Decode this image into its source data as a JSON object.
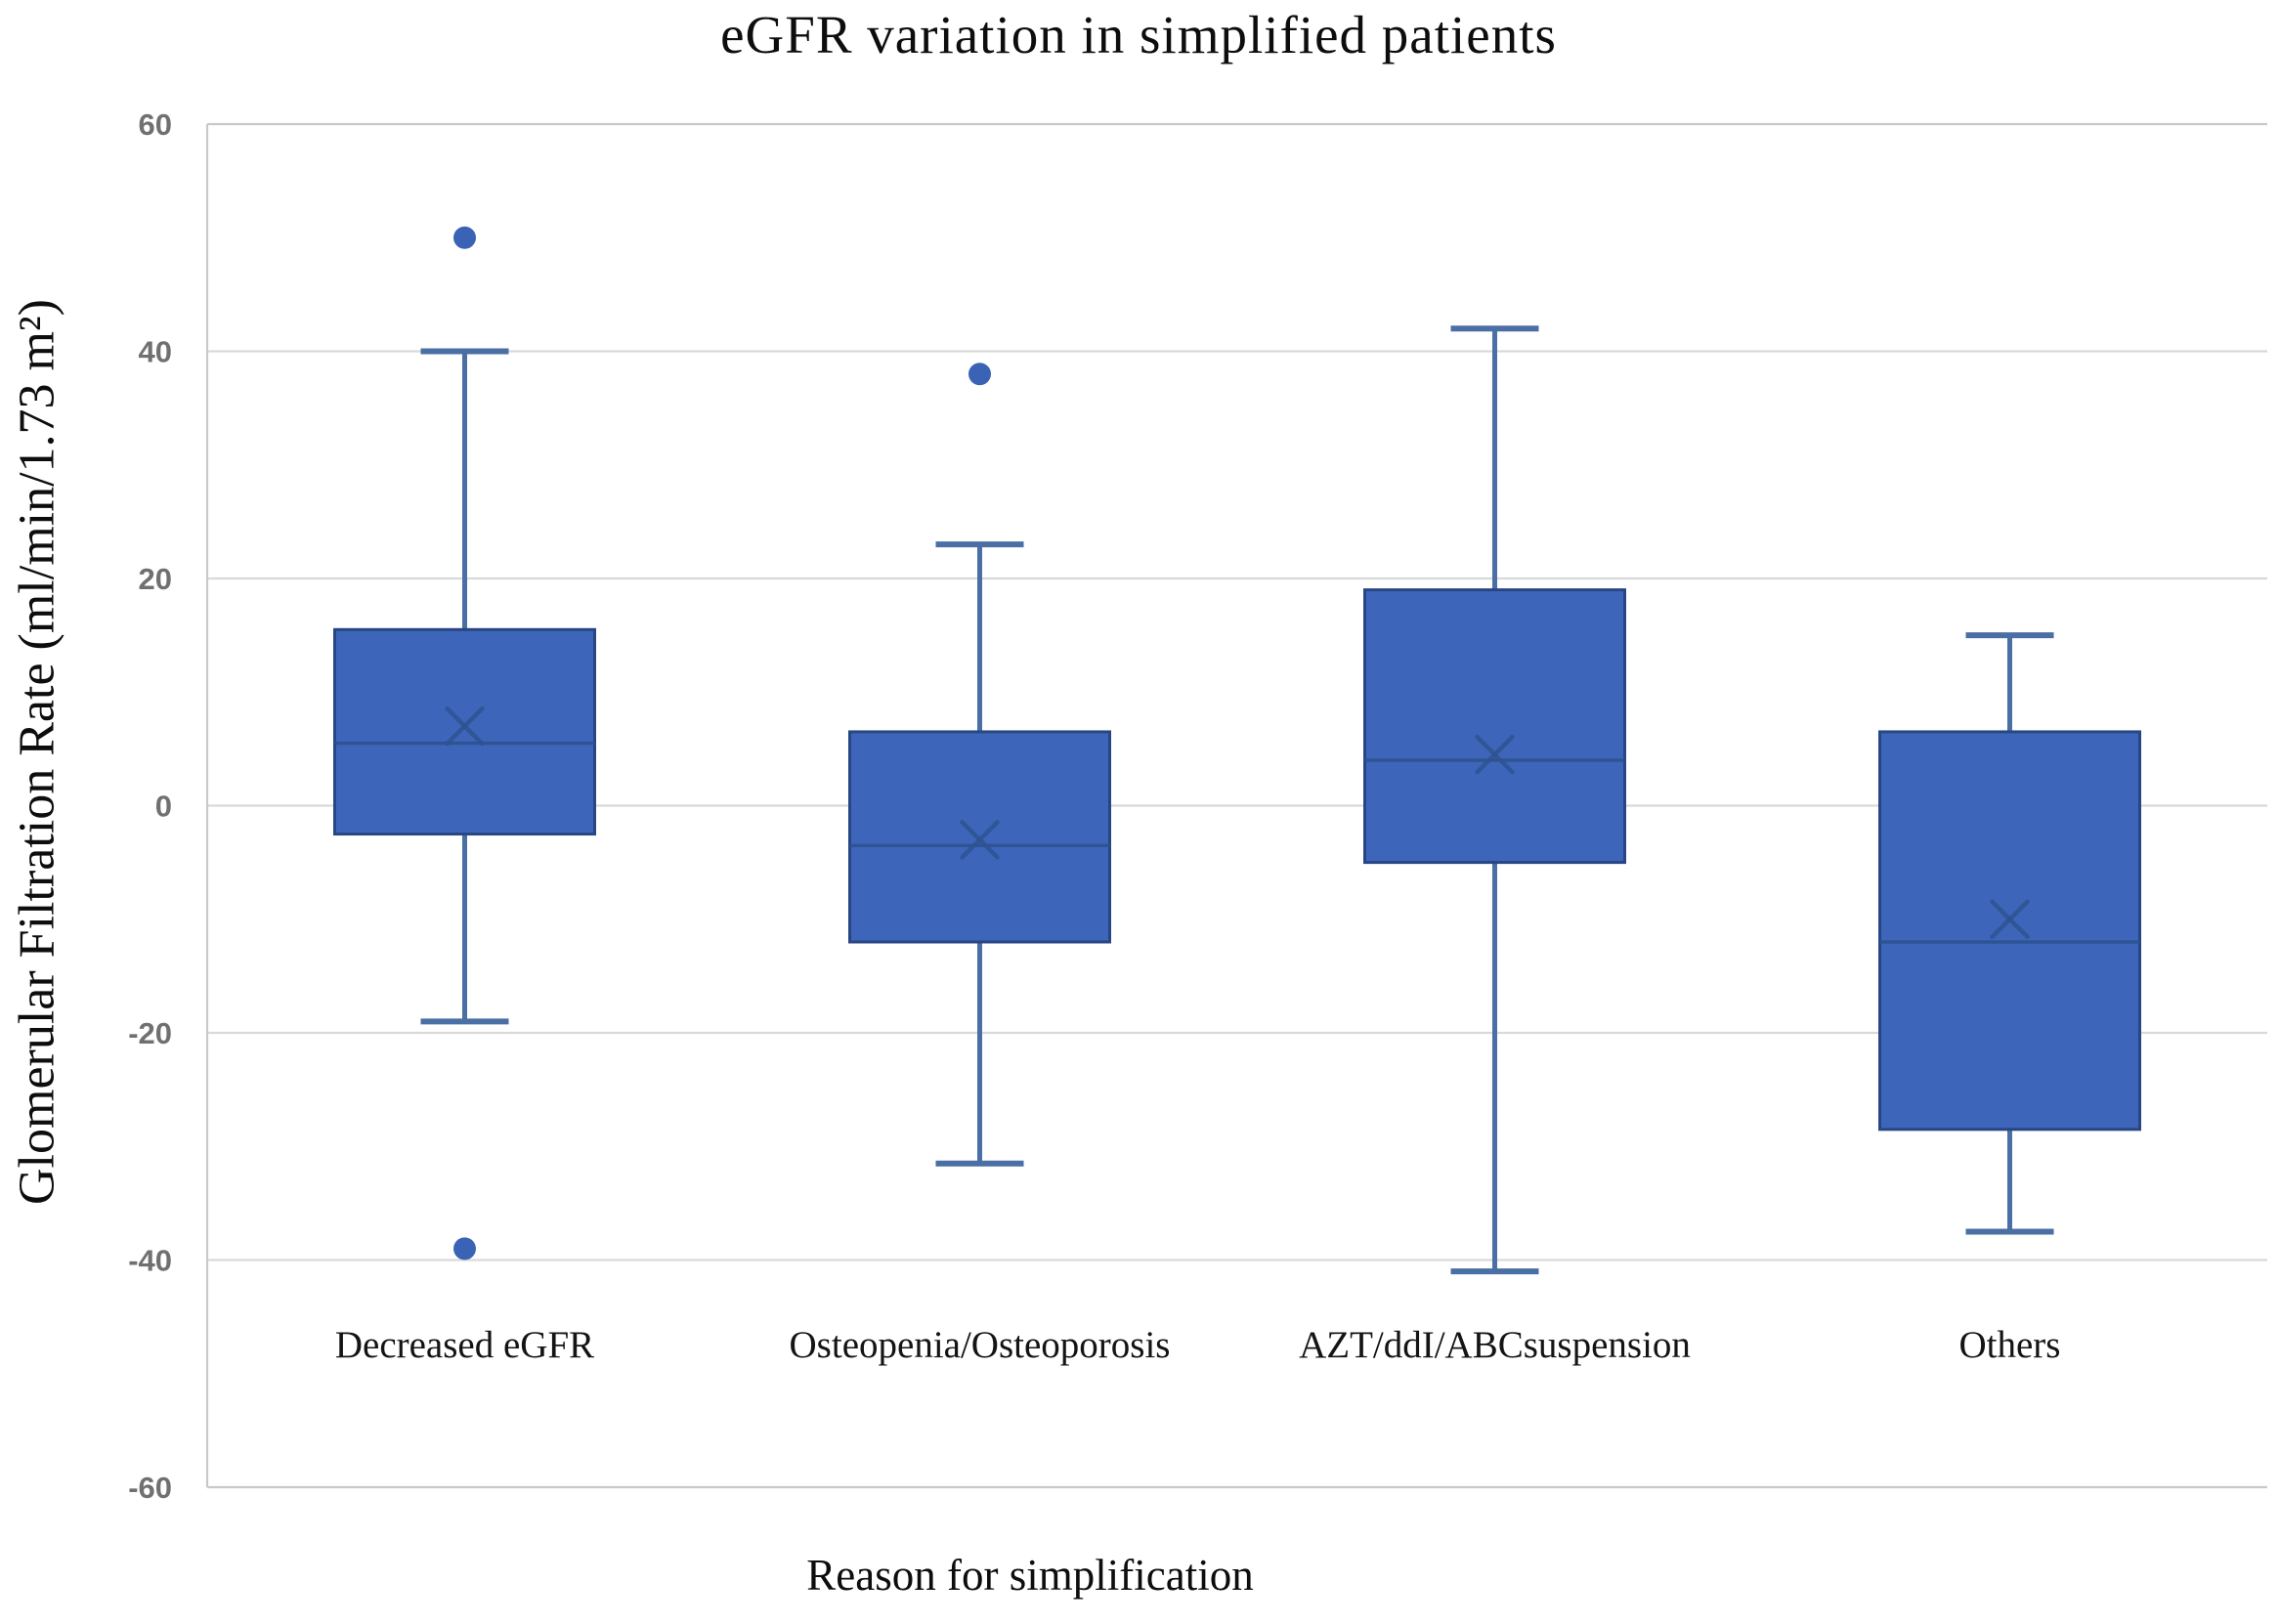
{
  "chart_data": {
    "type": "box",
    "title": "eGFR variation in simplified patients",
    "xlabel": "Reason for simplification",
    "ylabel": "Glomerular Filtration Rate (ml/min/1.73 m²)",
    "ylim": [
      -60,
      60
    ],
    "yticks": [
      60,
      40,
      20,
      0,
      -20,
      -40,
      -60
    ],
    "grid": true,
    "legend": "none",
    "categories": [
      "Decreased eGFR",
      "Osteopenia/Osteoporosis",
      "AZT/ddI/ABCsuspension",
      "Others"
    ],
    "series": [
      {
        "name": "Decreased eGFR",
        "whisker_low": -19,
        "q1": -2.5,
        "median": 5.5,
        "mean": 7,
        "q3": 15.5,
        "whisker_high": 40,
        "outliers": [
          50,
          -39
        ]
      },
      {
        "name": "Osteopenia/Osteoporosis",
        "whisker_low": -31.5,
        "q1": -12,
        "median": -3.5,
        "mean": -3,
        "q3": 6.5,
        "whisker_high": 23,
        "outliers": [
          38
        ]
      },
      {
        "name": "AZT/ddI/ABCsuspension",
        "whisker_low": -41,
        "q1": -5,
        "median": 4,
        "mean": 4.5,
        "q3": 19,
        "whisker_high": 42,
        "outliers": []
      },
      {
        "name": "Others",
        "whisker_low": -37.5,
        "q1": -28.5,
        "median": -12,
        "mean": -10,
        "q3": 6.5,
        "whisker_high": 15,
        "outliers": []
      }
    ],
    "colors": {
      "box_fill": "#3d66bb",
      "box_border": "#284683",
      "whisker": "#4a6fa5",
      "median_line": "#2e5390",
      "mean_marker": "#2e5390",
      "outlier": "#3a62b5",
      "gridline": "#d9d9d9",
      "axis_line": "#c9c9c9",
      "tick_label": "#707070",
      "text": "#0d0d0d"
    }
  }
}
